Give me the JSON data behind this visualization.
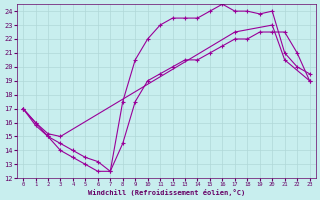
{
  "xlabel": "Windchill (Refroidissement éolien,°C)",
  "xlim": [
    -0.5,
    23.5
  ],
  "ylim": [
    12,
    24.5
  ],
  "xticks": [
    0,
    1,
    2,
    3,
    4,
    5,
    6,
    7,
    8,
    9,
    10,
    11,
    12,
    13,
    14,
    15,
    16,
    17,
    18,
    19,
    20,
    21,
    22,
    23
  ],
  "yticks": [
    12,
    13,
    14,
    15,
    16,
    17,
    18,
    19,
    20,
    21,
    22,
    23,
    24
  ],
  "bg_color": "#c8eeee",
  "grid_color": "#b0d8d8",
  "line_color": "#990099",
  "line1_x": [
    0,
    1,
    2,
    3,
    4,
    5,
    6,
    7,
    8,
    9,
    10,
    11,
    12,
    13,
    14,
    15,
    16,
    17,
    18,
    19,
    20,
    21,
    22,
    23
  ],
  "line1_y": [
    17,
    16,
    15,
    14.5,
    14,
    13.5,
    13.2,
    12.5,
    14.5,
    17.5,
    19,
    19.5,
    20,
    20.5,
    20.5,
    21,
    21.5,
    22,
    22,
    22.5,
    22.5,
    22.5,
    21,
    19
  ],
  "line2_x": [
    0,
    1,
    2,
    3,
    4,
    5,
    6,
    7,
    8,
    9,
    10,
    11,
    12,
    13,
    14,
    15,
    16,
    17,
    18,
    19,
    20,
    21,
    22,
    23
  ],
  "line2_y": [
    17,
    15.8,
    15,
    14,
    13.5,
    13,
    12.5,
    12.5,
    17.5,
    20.5,
    22,
    23,
    23.5,
    23.5,
    23.5,
    24,
    24.5,
    24,
    24,
    23.8,
    24,
    21,
    20,
    19.5
  ],
  "line3_x": [
    0,
    1,
    2,
    3,
    17,
    20,
    21,
    23
  ],
  "line3_y": [
    17,
    16,
    15.2,
    15,
    22.5,
    23,
    20.5,
    19
  ]
}
